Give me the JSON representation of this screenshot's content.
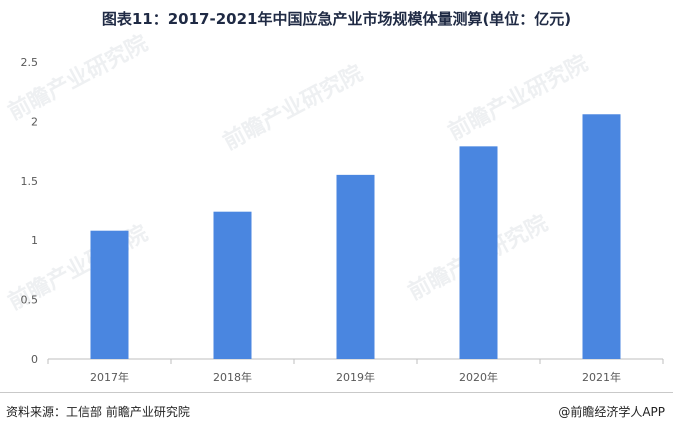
{
  "title": "图表11：2017-2021年中国应急产业市场规模体量测算(单位：亿元)",
  "watermark": "前瞻产业研究院",
  "footer": {
    "source": "资料来源：工信部 前瞻产业研究院",
    "brand": "@前瞻经济学人APP"
  },
  "colors": {
    "bar": "#4a86e0",
    "axis": "#bfbfbf",
    "tick_text": "#595959"
  },
  "chart_data": {
    "type": "bar",
    "title": "图表11：2017-2021年中国应急产业市场规模体量测算(单位：亿元)",
    "categories": [
      "2017年",
      "2018年",
      "2019年",
      "2020年",
      "2021年"
    ],
    "values": [
      1.08,
      1.24,
      1.55,
      1.79,
      2.06
    ],
    "ylim": [
      0,
      2.5
    ],
    "yticks": [
      0,
      0.5,
      1,
      1.5,
      2,
      2.5
    ],
    "ytick_labels": [
      "0",
      "0.5",
      "1",
      "1.5",
      "2",
      "2.5"
    ],
    "xlabel": "",
    "ylabel": "",
    "grid": false,
    "legend": "none"
  }
}
